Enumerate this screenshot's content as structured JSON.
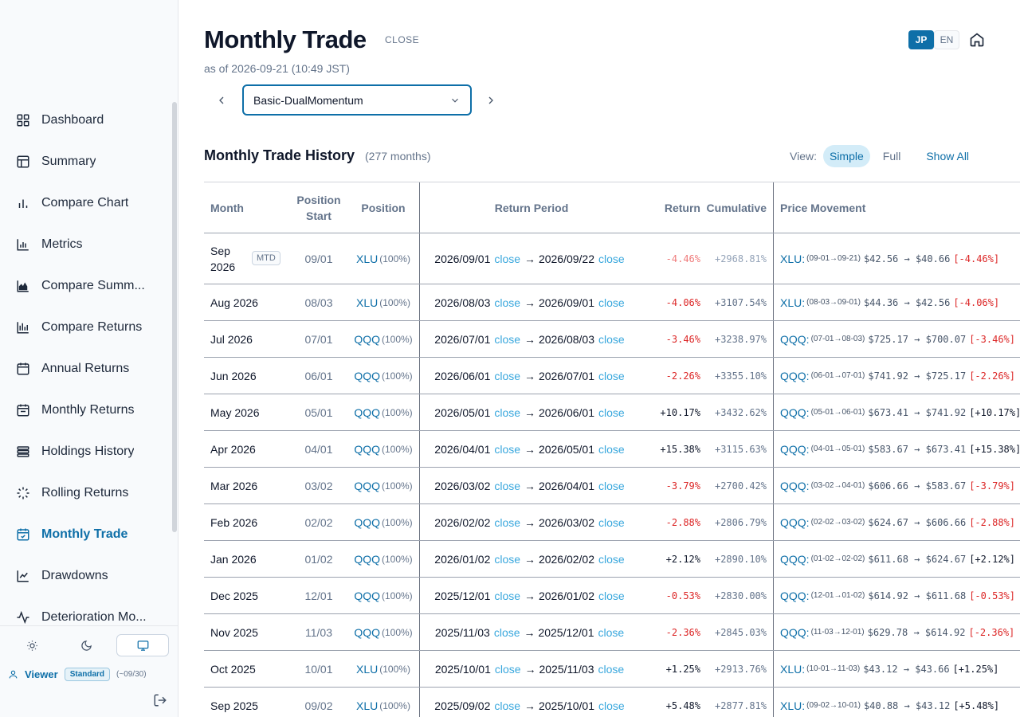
{
  "sidebar": {
    "items": [
      {
        "label": "Dashboard",
        "icon": "dashboard-icon",
        "active": false
      },
      {
        "label": "Summary",
        "icon": "summary-icon",
        "active": false
      },
      {
        "label": "Compare Chart",
        "icon": "bar-chart-icon",
        "active": false
      },
      {
        "label": "Metrics",
        "icon": "metrics-icon",
        "active": false
      },
      {
        "label": "Compare Summ...",
        "icon": "area-chart-icon",
        "active": false
      },
      {
        "label": "Compare Returns",
        "icon": "returns-chart-icon",
        "active": false
      },
      {
        "label": "Annual Returns",
        "icon": "calendar-icon",
        "active": false
      },
      {
        "label": "Monthly Returns",
        "icon": "calendar-month-icon",
        "active": false
      },
      {
        "label": "Holdings History",
        "icon": "layers-icon",
        "active": false
      },
      {
        "label": "Rolling Returns",
        "icon": "loader-icon",
        "active": false
      },
      {
        "label": "Monthly Trade",
        "icon": "calendar-check-icon",
        "active": true
      },
      {
        "label": "Drawdowns",
        "icon": "line-chart-icon",
        "active": false
      },
      {
        "label": "Deterioration Mo...",
        "icon": "activity-icon",
        "active": false
      }
    ],
    "theme_buttons": [
      "sun-icon",
      "moon-icon",
      "monitor-icon"
    ],
    "user": {
      "name": "Viewer",
      "plan": "Standard",
      "period": "(~09/30)"
    }
  },
  "header": {
    "title": "Monthly Trade",
    "close_label": "CLOSE",
    "as_of": "as of 2026-09-21 (10:49 JST)",
    "lang": {
      "active": "JP",
      "inactive": "EN"
    }
  },
  "strategy": {
    "selected": "Basic-DualMomentum"
  },
  "history": {
    "title": "Monthly Trade History",
    "count": "(277 months)",
    "view_label": "View:",
    "view_simple": "Simple",
    "view_full": "Full",
    "show_all": "Show All"
  },
  "table": {
    "headers": {
      "month": "Month",
      "pos_start": "Position Start",
      "position": "Position",
      "period": "Return Period",
      "ret": "Return",
      "cum": "Cumulative",
      "pm": "Price Movement"
    },
    "close_word": "close",
    "rows": [
      {
        "month": "Sep 2026",
        "mtd": "MTD",
        "pstart": "09/01",
        "ticker": "XLU",
        "alloc": "(100%)",
        "from": "2026/09/01",
        "to": "2026/09/22",
        "ret": "-4.46%",
        "cum": "+2968.81%",
        "pm_t": "XLU:",
        "pm_d": "(09-01→09-21)",
        "pm_p": "$42.56 → $40.66",
        "pm_c": "[-4.46%]",
        "neg": true,
        "light": true
      },
      {
        "month": "Aug 2026",
        "pstart": "08/03",
        "ticker": "XLU",
        "alloc": "(100%)",
        "from": "2026/08/03",
        "to": "2026/09/01",
        "ret": "-4.06%",
        "cum": "+3107.54%",
        "pm_t": "XLU:",
        "pm_d": "(08-03→09-01)",
        "pm_p": "$44.36 → $42.56",
        "pm_c": "[-4.06%]",
        "neg": true
      },
      {
        "month": "Jul 2026",
        "pstart": "07/01",
        "ticker": "QQQ",
        "alloc": "(100%)",
        "from": "2026/07/01",
        "to": "2026/08/03",
        "ret": "-3.46%",
        "cum": "+3238.97%",
        "pm_t": "QQQ:",
        "pm_d": "(07-01→08-03)",
        "pm_p": "$725.17 → $700.07",
        "pm_c": "[-3.46%]",
        "neg": true
      },
      {
        "month": "Jun 2026",
        "pstart": "06/01",
        "ticker": "QQQ",
        "alloc": "(100%)",
        "from": "2026/06/01",
        "to": "2026/07/01",
        "ret": "-2.26%",
        "cum": "+3355.10%",
        "pm_t": "QQQ:",
        "pm_d": "(06-01→07-01)",
        "pm_p": "$741.92 → $725.17",
        "pm_c": "[-2.26%]",
        "neg": true
      },
      {
        "month": "May 2026",
        "pstart": "05/01",
        "ticker": "QQQ",
        "alloc": "(100%)",
        "from": "2026/05/01",
        "to": "2026/06/01",
        "ret": "+10.17%",
        "cum": "+3432.62%",
        "pm_t": "QQQ:",
        "pm_d": "(05-01→06-01)",
        "pm_p": "$673.41 → $741.92",
        "pm_c": "[+10.17%]",
        "neg": false
      },
      {
        "month": "Apr 2026",
        "pstart": "04/01",
        "ticker": "QQQ",
        "alloc": "(100%)",
        "from": "2026/04/01",
        "to": "2026/05/01",
        "ret": "+15.38%",
        "cum": "+3115.63%",
        "pm_t": "QQQ:",
        "pm_d": "(04-01→05-01)",
        "pm_p": "$583.67 → $673.41",
        "pm_c": "[+15.38%]",
        "neg": false
      },
      {
        "month": "Mar 2026",
        "pstart": "03/02",
        "ticker": "QQQ",
        "alloc": "(100%)",
        "from": "2026/03/02",
        "to": "2026/04/01",
        "ret": "-3.79%",
        "cum": "+2700.42%",
        "pm_t": "QQQ:",
        "pm_d": "(03-02→04-01)",
        "pm_p": "$606.66 → $583.67",
        "pm_c": "[-3.79%]",
        "neg": true
      },
      {
        "month": "Feb 2026",
        "pstart": "02/02",
        "ticker": "QQQ",
        "alloc": "(100%)",
        "from": "2026/02/02",
        "to": "2026/03/02",
        "ret": "-2.88%",
        "cum": "+2806.79%",
        "pm_t": "QQQ:",
        "pm_d": "(02-02→03-02)",
        "pm_p": "$624.67 → $606.66",
        "pm_c": "[-2.88%]",
        "neg": true
      },
      {
        "month": "Jan 2026",
        "pstart": "01/02",
        "ticker": "QQQ",
        "alloc": "(100%)",
        "from": "2026/01/02",
        "to": "2026/02/02",
        "ret": "+2.12%",
        "cum": "+2890.10%",
        "pm_t": "QQQ:",
        "pm_d": "(01-02→02-02)",
        "pm_p": "$611.68 → $624.67",
        "pm_c": "[+2.12%]",
        "neg": false
      },
      {
        "month": "Dec 2025",
        "pstart": "12/01",
        "ticker": "QQQ",
        "alloc": "(100%)",
        "from": "2025/12/01",
        "to": "2026/01/02",
        "ret": "-0.53%",
        "cum": "+2830.00%",
        "pm_t": "QQQ:",
        "pm_d": "(12-01→01-02)",
        "pm_p": "$614.92 → $611.68",
        "pm_c": "[-0.53%]",
        "neg": true
      },
      {
        "month": "Nov 2025",
        "pstart": "11/03",
        "ticker": "QQQ",
        "alloc": "(100%)",
        "from": "2025/11/03",
        "to": "2025/12/01",
        "ret": "-2.36%",
        "cum": "+2845.03%",
        "pm_t": "QQQ:",
        "pm_d": "(11-03→12-01)",
        "pm_p": "$629.78 → $614.92",
        "pm_c": "[-2.36%]",
        "neg": true
      },
      {
        "month": "Oct 2025",
        "pstart": "10/01",
        "ticker": "XLU",
        "alloc": "(100%)",
        "from": "2025/10/01",
        "to": "2025/11/03",
        "ret": "+1.25%",
        "cum": "+2913.76%",
        "pm_t": "XLU:",
        "pm_d": "(10-01→11-03)",
        "pm_p": "$43.12 → $43.66",
        "pm_c": "[+1.25%]",
        "neg": false
      },
      {
        "month": "Sep 2025",
        "pstart": "09/02",
        "ticker": "XLU",
        "alloc": "(100%)",
        "from": "2025/09/02",
        "to": "2025/10/01",
        "ret": "+5.48%",
        "cum": "+2877.81%",
        "pm_t": "XLU:",
        "pm_d": "(09-02→10-01)",
        "pm_p": "$40.88 → $43.12",
        "pm_c": "[+5.48%]",
        "neg": false
      }
    ]
  },
  "colors": {
    "accent": "#0e6fa8",
    "link": "#38a7dd",
    "negative": "#dc2626"
  }
}
